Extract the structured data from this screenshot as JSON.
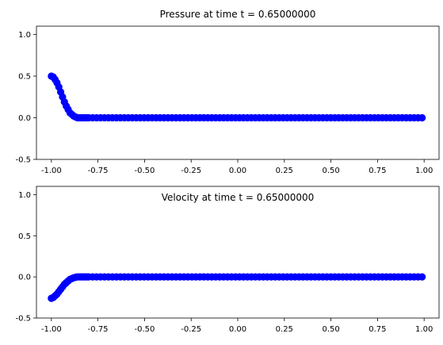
{
  "chart_data": [
    {
      "type": "scatter",
      "title": "Pressure at time t =     0.65000000",
      "xlabel": "",
      "ylabel": "",
      "xlim": [
        -1.08,
        1.08
      ],
      "ylim": [
        -0.5,
        1.1
      ],
      "xticks": [
        "-1.00",
        "-0.75",
        "-0.50",
        "-0.25",
        "0.00",
        "0.25",
        "0.50",
        "0.75",
        "1.00"
      ],
      "yticks": [
        "-0.5",
        "0.0",
        "0.5",
        "1.0"
      ],
      "marker_color": "#0000ff",
      "points": [
        [
          -1.0,
          0.5
        ],
        [
          -0.99,
          0.49
        ],
        [
          -0.98,
          0.46
        ],
        [
          -0.97,
          0.42
        ],
        [
          -0.96,
          0.37
        ],
        [
          -0.95,
          0.31
        ],
        [
          -0.94,
          0.25
        ],
        [
          -0.93,
          0.19
        ],
        [
          -0.92,
          0.14
        ],
        [
          -0.91,
          0.1
        ],
        [
          -0.9,
          0.06
        ],
        [
          -0.89,
          0.04
        ],
        [
          -0.88,
          0.02
        ],
        [
          -0.87,
          0.01
        ],
        [
          -0.86,
          0.0
        ],
        [
          -0.85,
          0.0
        ],
        [
          -0.84,
          0.0
        ],
        [
          -0.83,
          0.0
        ],
        [
          -0.82,
          0.0
        ],
        [
          -0.81,
          0.0
        ],
        [
          -0.8,
          0.0
        ]
      ],
      "flat_range": [
        -0.8,
        1.0
      ],
      "flat_value": 0.0,
      "flat_step": 0.0213
    },
    {
      "type": "scatter",
      "title": "Velocity at time t =     0.65000000",
      "xlabel": "",
      "ylabel": "",
      "xlim": [
        -1.08,
        1.08
      ],
      "ylim": [
        -0.5,
        1.1
      ],
      "xticks": [
        "-1.00",
        "-0.75",
        "-0.50",
        "-0.25",
        "0.00",
        "0.25",
        "0.50",
        "0.75",
        "1.00"
      ],
      "yticks": [
        "-0.5",
        "0.0",
        "0.5",
        "1.0"
      ],
      "marker_color": "#0000ff",
      "points": [
        [
          -1.0,
          -0.26
        ],
        [
          -0.99,
          -0.25
        ],
        [
          -0.98,
          -0.23
        ],
        [
          -0.97,
          -0.21
        ],
        [
          -0.96,
          -0.18
        ],
        [
          -0.95,
          -0.15
        ],
        [
          -0.94,
          -0.12
        ],
        [
          -0.93,
          -0.09
        ],
        [
          -0.92,
          -0.07
        ],
        [
          -0.91,
          -0.05
        ],
        [
          -0.9,
          -0.03
        ],
        [
          -0.89,
          -0.02
        ],
        [
          -0.88,
          -0.01
        ],
        [
          -0.87,
          -0.005
        ],
        [
          -0.86,
          0.0
        ],
        [
          -0.85,
          0.0
        ],
        [
          -0.84,
          0.0
        ],
        [
          -0.83,
          0.0
        ],
        [
          -0.82,
          0.0
        ],
        [
          -0.81,
          0.0
        ],
        [
          -0.8,
          0.0
        ]
      ],
      "flat_range": [
        -0.8,
        1.0
      ],
      "flat_value": 0.0,
      "flat_step": 0.0213
    }
  ]
}
